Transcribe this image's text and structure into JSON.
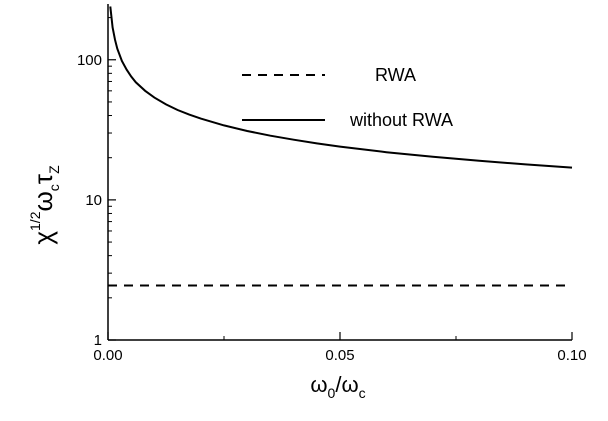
{
  "chart_data": {
    "type": "line",
    "xlabel": {
      "main": "ω",
      "sub1": "0",
      "slash": "/ω",
      "sub2": "c"
    },
    "ylabel": {
      "chi": "χ",
      "sup": "1/2",
      "omega": "ω",
      "omega_sub": "c",
      "tau": "τ",
      "tau_sub": "Z"
    },
    "xlim": [
      0.0,
      0.1
    ],
    "ylim": [
      1,
      250
    ],
    "yscale": "log",
    "x_ticks": [
      {
        "value": 0.0,
        "label": "0.00"
      },
      {
        "value": 0.05,
        "label": "0.05"
      },
      {
        "value": 0.1,
        "label": "0.10"
      }
    ],
    "y_ticks": [
      {
        "value": 1,
        "label": "1"
      },
      {
        "value": 10,
        "label": "10"
      },
      {
        "value": 100,
        "label": "100"
      }
    ],
    "legend_position": "top-right",
    "grid": false,
    "series": [
      {
        "name": "RWA",
        "style": "dashed",
        "color": "#000000",
        "x": [
          0.0,
          0.1
        ],
        "y": [
          2.45,
          2.45
        ]
      },
      {
        "name": "without RWA",
        "style": "solid",
        "color": "#000000",
        "x": [
          0.0005,
          0.001,
          0.0015,
          0.002,
          0.003,
          0.004,
          0.005,
          0.006,
          0.008,
          0.01,
          0.0125,
          0.015,
          0.0175,
          0.02,
          0.025,
          0.03,
          0.035,
          0.04,
          0.045,
          0.05,
          0.06,
          0.07,
          0.08,
          0.09,
          0.1
        ],
        "y": [
          240,
          170,
          139,
          120,
          98,
          85,
          76,
          69,
          60,
          53.7,
          48,
          43.8,
          40.6,
          38.0,
          34.0,
          31.0,
          28.7,
          26.9,
          25.3,
          24.0,
          21.9,
          20.3,
          19.0,
          17.9,
          17.0
        ]
      }
    ]
  }
}
